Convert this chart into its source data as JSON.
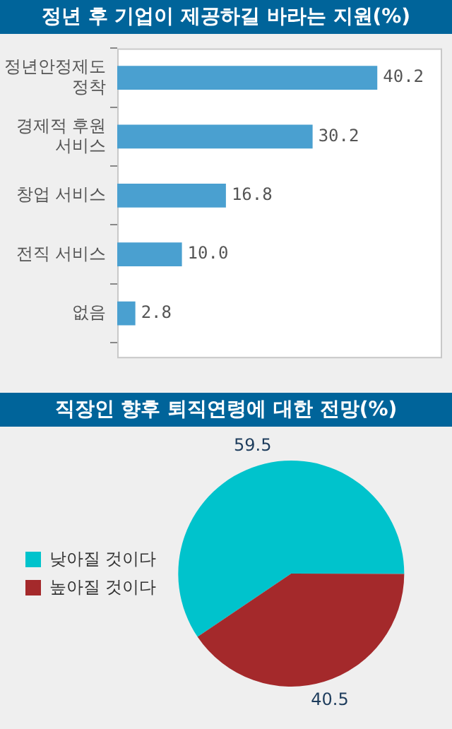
{
  "chart_data": [
    {
      "type": "bar",
      "title": "정년 후 기업이 제공하길 바라는 지원(%)",
      "orientation": "horizontal",
      "categories": [
        "정년안정제도 정착",
        "경제적 후원 서비스",
        "창업 서비스",
        "전직 서비스",
        "없음"
      ],
      "values": [
        40.2,
        30.2,
        16.8,
        10.0,
        2.8
      ],
      "value_labels": [
        "40.2",
        "30.2",
        "16.8",
        "10.0",
        "2.8"
      ],
      "color": "#4aa0d0"
    },
    {
      "type": "pie",
      "title": "직장인 향후 퇴직연령에 대한 전망(%)",
      "categories": [
        "낮아질 것이다",
        "높아질 것이다"
      ],
      "values": [
        59.5,
        40.5
      ],
      "colors": [
        "#00c3cc",
        "#a4292b"
      ],
      "data_labels": true,
      "legend": "left"
    }
  ]
}
